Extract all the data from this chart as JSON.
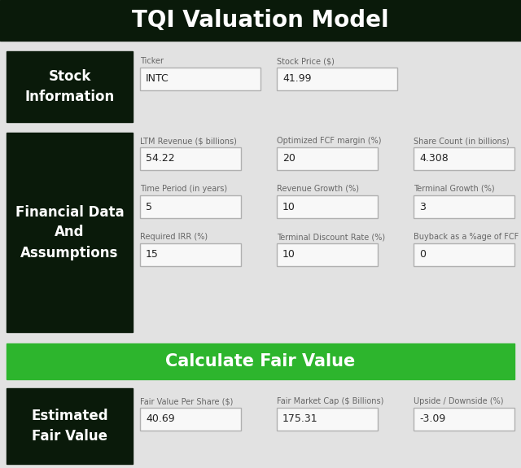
{
  "title": "TQI Valuation Model",
  "title_bg": "#0a1a0a",
  "title_color": "#ffffff",
  "title_fontsize": 20,
  "bg_color": "#e2e2e2",
  "dark_label_bg": "#0a1a0a",
  "dark_label_color": "#ffffff",
  "green_btn_bg": "#2db52d",
  "green_btn_color": "#ffffff",
  "label_color": "#666666",
  "value_color": "#222222",
  "section1_label": "Stock\nInformation",
  "section2_label": "Financial Data\nAnd\nAssumptions",
  "section3_label": "Estimated\nFair Value",
  "btn_label": "Calculate Fair Value",
  "fields": {
    "ticker_label": "Ticker",
    "ticker_value": "INTC",
    "stock_price_label": "Stock Price ($)",
    "stock_price_value": "41.99",
    "ltm_rev_label": "LTM Revenue ($ billions)",
    "ltm_rev_value": "54.22",
    "fcf_label": "Optimized FCF margin (%)",
    "fcf_value": "20",
    "share_count_label": "Share Count (in billions)",
    "share_count_value": "4.308",
    "time_period_label": "Time Period (in years)",
    "time_period_value": "5",
    "rev_growth_label": "Revenue Growth (%)",
    "rev_growth_value": "10",
    "terminal_growth_label": "Terminal Growth (%)",
    "terminal_growth_value": "3",
    "irr_label": "Required IRR (%)",
    "irr_value": "15",
    "discount_label": "Terminal Discount Rate (%)",
    "discount_value": "10",
    "buyback_label": "Buyback as a %age of FCF",
    "buyback_value": "0",
    "fair_value_label": "Fair Value Per Share ($)",
    "fair_value_value": "40.69",
    "market_cap_label": "Fair Market Cap ($ Billions)",
    "market_cap_value": "175.31",
    "upside_label": "Upside / Downside (%)",
    "upside_value": "-3.09"
  }
}
